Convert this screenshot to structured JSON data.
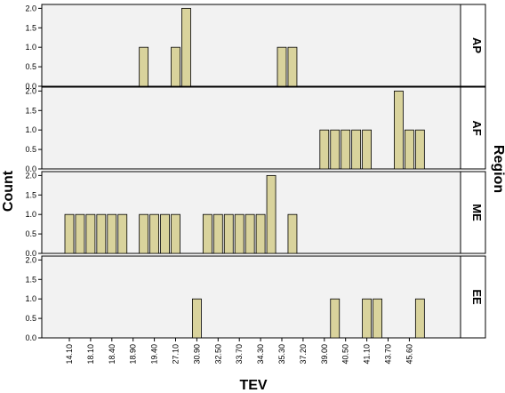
{
  "chart_data": {
    "type": "bar",
    "xlabel": "TEV",
    "ylabel": "Count",
    "facet_label": "Region",
    "ylim": [
      0,
      2.1
    ],
    "yticks": [
      "0.0",
      "0.5",
      "1.0",
      "1.5",
      "2.0"
    ],
    "categories": [
      "14.10",
      "18.10",
      "18.40",
      "18.90",
      "19.40",
      "27.10",
      "30.90",
      "32.50",
      "33.70",
      "34.30",
      "35.30",
      "37.20",
      "39.00",
      "40.50",
      "41.10",
      "43.70",
      "45.60"
    ],
    "bar_color": "#d9d39c",
    "panel_bg": "#f2f2f2",
    "panels": [
      {
        "name": "AP",
        "values": [
          0,
          0,
          0,
          0,
          0,
          0,
          0,
          1,
          0,
          0,
          1,
          2,
          0,
          0,
          0,
          0,
          0,
          0,
          0,
          0,
          1,
          1,
          0,
          0,
          0,
          0,
          0,
          0,
          0,
          0,
          0,
          0,
          0,
          0,
          0
        ]
      },
      {
        "name": "AF",
        "values": [
          0,
          0,
          0,
          0,
          0,
          0,
          0,
          0,
          0,
          0,
          0,
          0,
          0,
          0,
          0,
          0,
          0,
          0,
          0,
          0,
          0,
          0,
          0,
          0,
          1,
          1,
          1,
          1,
          1,
          0,
          0,
          2,
          1,
          1,
          0
        ]
      },
      {
        "name": "ME",
        "values": [
          1,
          1,
          1,
          1,
          1,
          1,
          0,
          1,
          1,
          1,
          1,
          0,
          0,
          1,
          1,
          1,
          1,
          1,
          1,
          2,
          0,
          1,
          0,
          0,
          0,
          0,
          0,
          0,
          0,
          0,
          0,
          0,
          0,
          0,
          0
        ]
      },
      {
        "name": "EE",
        "values": [
          0,
          0,
          0,
          0,
          0,
          0,
          0,
          0,
          0,
          0,
          0,
          0,
          1,
          0,
          0,
          0,
          0,
          0,
          0,
          0,
          0,
          0,
          0,
          0,
          0,
          1,
          0,
          0,
          1,
          1,
          0,
          0,
          0,
          1,
          0
        ]
      }
    ]
  }
}
